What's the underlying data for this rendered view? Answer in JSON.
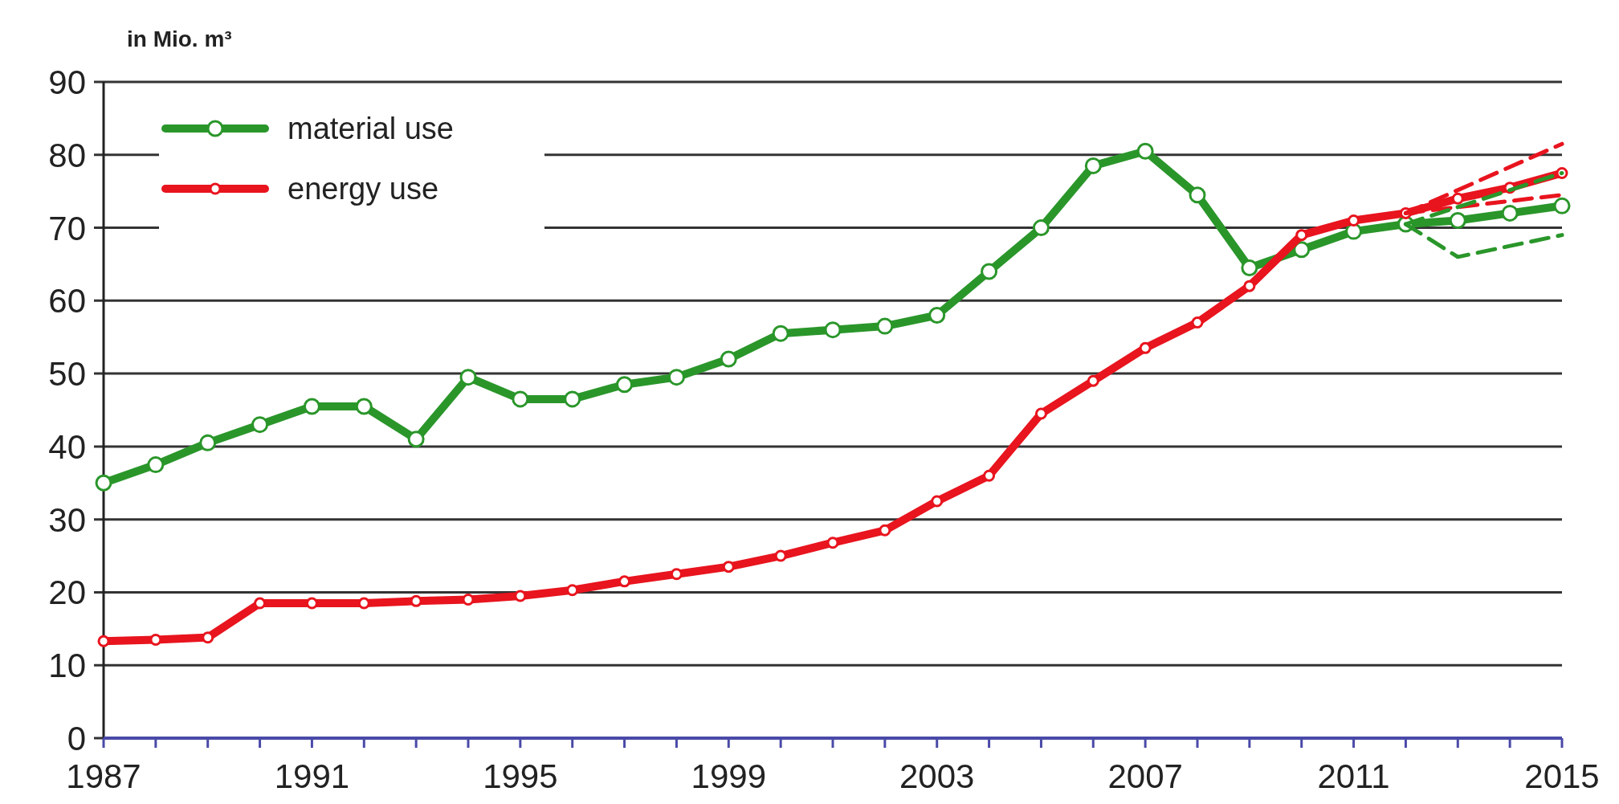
{
  "chart_data": {
    "type": "line",
    "ylabel": "in Mio. m³",
    "x": [
      1987,
      1988,
      1989,
      1990,
      1991,
      1992,
      1993,
      1994,
      1995,
      1996,
      1997,
      1998,
      1999,
      2000,
      2001,
      2002,
      2003,
      2004,
      2005,
      2006,
      2007,
      2008,
      2009,
      2010,
      2011,
      2012,
      2013,
      2014,
      2015
    ],
    "series": [
      {
        "name": "material use",
        "color": "#2a962a",
        "values": [
          35,
          37.5,
          40.5,
          43,
          45.5,
          45.5,
          41,
          49.5,
          46.5,
          46.5,
          48.5,
          49.5,
          52,
          55.5,
          56,
          56.5,
          58,
          64,
          70,
          78.5,
          80.5,
          74.5,
          64.5,
          67,
          69.5,
          70.5,
          71,
          72,
          73
        ]
      },
      {
        "name": "energy use",
        "color": "#e8141e",
        "values": [
          13.3,
          13.5,
          13.8,
          18.5,
          18.5,
          18.5,
          18.8,
          19,
          19.5,
          20.3,
          21.5,
          22.5,
          23.5,
          25,
          26.8,
          28.5,
          32.5,
          36,
          44.5,
          49,
          53.5,
          57,
          62,
          69,
          71,
          72,
          74,
          75.5,
          77.5
        ]
      },
      {
        "color": "#e8141e",
        "x": [
          2012,
          2015
        ],
        "values": [
          72,
          81.5
        ],
        "line_style": "dashed",
        "marker": "none"
      },
      {
        "color": "#e8141e",
        "x": [
          2012,
          2015
        ],
        "values": [
          72,
          74.5
        ],
        "line_style": "dashed",
        "marker": "none"
      },
      {
        "color": "#2a962a",
        "x": [
          2012,
          2015
        ],
        "values": [
          70.5,
          77.5
        ],
        "line_style": "dashed",
        "marker": "none"
      },
      {
        "color": "#2a962a",
        "x": [
          2012,
          2013,
          2015
        ],
        "values": [
          70.5,
          66,
          69
        ],
        "line_style": "dashed",
        "marker": "none"
      }
    ],
    "xlim": [
      1987,
      2015
    ],
    "xticks": [
      1987,
      {
        "value": 1988,
        "label": null
      },
      {
        "value": 1989,
        "label": null
      },
      {
        "value": 1990,
        "label": null
      },
      1991,
      {
        "value": 1992,
        "label": null
      },
      {
        "value": 1993,
        "label": null
      },
      {
        "value": 1994,
        "label": null
      },
      1995,
      {
        "value": 1996,
        "label": null
      },
      {
        "value": 1997,
        "label": null
      },
      {
        "value": 1998,
        "label": null
      },
      1999,
      {
        "value": 2000,
        "label": null
      },
      {
        "value": 2001,
        "label": null
      },
      {
        "value": 2002,
        "label": null
      },
      2003,
      {
        "value": 2004,
        "label": null
      },
      {
        "value": 2005,
        "label": null
      },
      {
        "value": 2006,
        "label": null
      },
      2007,
      {
        "value": 2008,
        "label": null
      },
      {
        "value": 2009,
        "label": null
      },
      {
        "value": 2010,
        "label": null
      },
      2011,
      {
        "value": 2012,
        "label": null
      },
      {
        "value": 2013,
        "label": null
      },
      {
        "value": 2014,
        "label": null
      },
      2015
    ],
    "ylim": [
      0,
      90
    ],
    "yticks": [
      0,
      10,
      20,
      30,
      40,
      50,
      60,
      70,
      80,
      90
    ],
    "grid": "y",
    "legend": "top left",
    "marker": "circle",
    "line_style": "solid"
  }
}
